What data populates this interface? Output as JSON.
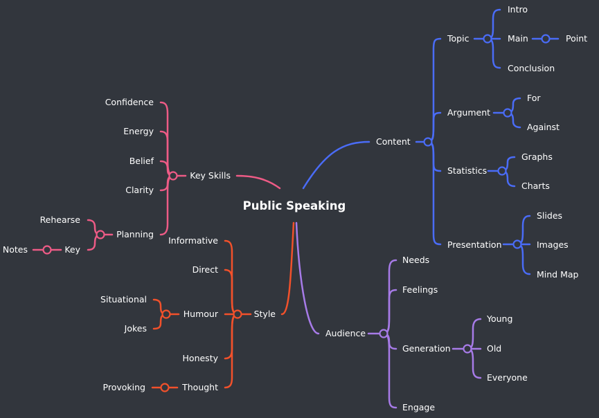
{
  "title": "Public Speaking",
  "colors": {
    "background": "#32363d",
    "content": "#4a6cf7",
    "audience": "#a77be8",
    "style": "#f2512b",
    "key_skills": "#ee5b86",
    "text": "#ffffff"
  },
  "branches": {
    "content": {
      "label": "Content",
      "topic": {
        "label": "Topic",
        "intro": "Intro",
        "main": "Main",
        "point": "Point",
        "conclusion": "Conclusion"
      },
      "argument": {
        "label": "Argument",
        "for": "For",
        "against": "Against"
      },
      "statistics": {
        "label": "Statistics",
        "graphs": "Graphs",
        "charts": "Charts"
      },
      "presentation": {
        "label": "Presentation",
        "slides": "Slides",
        "images": "Images",
        "mind_map": "Mind Map"
      }
    },
    "audience": {
      "label": "Audience",
      "needs": "Needs",
      "feelings": "Feelings",
      "generation": {
        "label": "Generation",
        "young": "Young",
        "old": "Old",
        "everyone": "Everyone"
      },
      "engage": "Engage"
    },
    "style": {
      "label": "Style",
      "informative": "Informative",
      "direct": "Direct",
      "humour": {
        "label": "Humour",
        "situational": "Situational",
        "jokes": "Jokes"
      },
      "honesty": "Honesty",
      "thought": {
        "label": "Thought",
        "provoking": "Provoking"
      }
    },
    "key_skills": {
      "label": "Key Skills",
      "confidence": "Confidence",
      "energy": "Energy",
      "belief": "Belief",
      "clarity": "Clarity",
      "planning": {
        "label": "Planning",
        "rehearse": "Rehearse",
        "key": {
          "label": "Key",
          "notes": "Notes"
        }
      }
    }
  }
}
